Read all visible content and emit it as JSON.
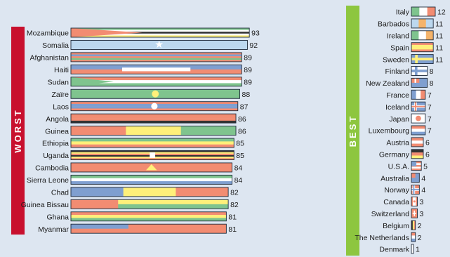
{
  "chart_data": [
    {
      "type": "bar",
      "title": "WORST",
      "title_bar_color": "#c8102e",
      "categories": [
        "Mozambique",
        "Somalia",
        "Afghanistan",
        "Haiti",
        "Sudan",
        "Zaïre",
        "Laos",
        "Angola",
        "Guinea",
        "Ethiopia",
        "Uganda",
        "Cambodia",
        "Sierra Leone",
        "Chad",
        "Guinea Bissau",
        "Ghana",
        "Myanmar"
      ],
      "values": [
        93,
        92,
        89,
        89,
        89,
        88,
        87,
        86,
        86,
        85,
        85,
        84,
        84,
        82,
        82,
        81,
        81
      ],
      "bar_style": "flag"
    },
    {
      "type": "bar",
      "title": "BEST",
      "title_bar_color": "#8dc63f",
      "categories": [
        "Italy",
        "Barbados",
        "Ireland",
        "Spain",
        "Sweden",
        "Finland",
        "New Zealand",
        "France",
        "Iceland",
        "Japan",
        "Luxembourg",
        "Austria",
        "Germany",
        "U.S.A.",
        "Australia",
        "Norway",
        "Canada",
        "Switzerland",
        "Belgium",
        "The Netherlands",
        "Denmark"
      ],
      "values": [
        12,
        11,
        11,
        11,
        11,
        8,
        8,
        7,
        7,
        7,
        7,
        6,
        6,
        5,
        4,
        4,
        3,
        3,
        2,
        2,
        1
      ],
      "bar_style": "flag"
    }
  ],
  "colors": {
    "background": "#dde6f1",
    "flag_red": "#f28c72",
    "flag_green": "#7fc48e",
    "flag_blue": "#7f9fd0",
    "flag_yellow": "#fff07a",
    "flag_white": "#ffffff",
    "flag_black": "#333333",
    "flag_orange": "#f4b36a",
    "flag_lightblue": "#bcd8ef"
  }
}
